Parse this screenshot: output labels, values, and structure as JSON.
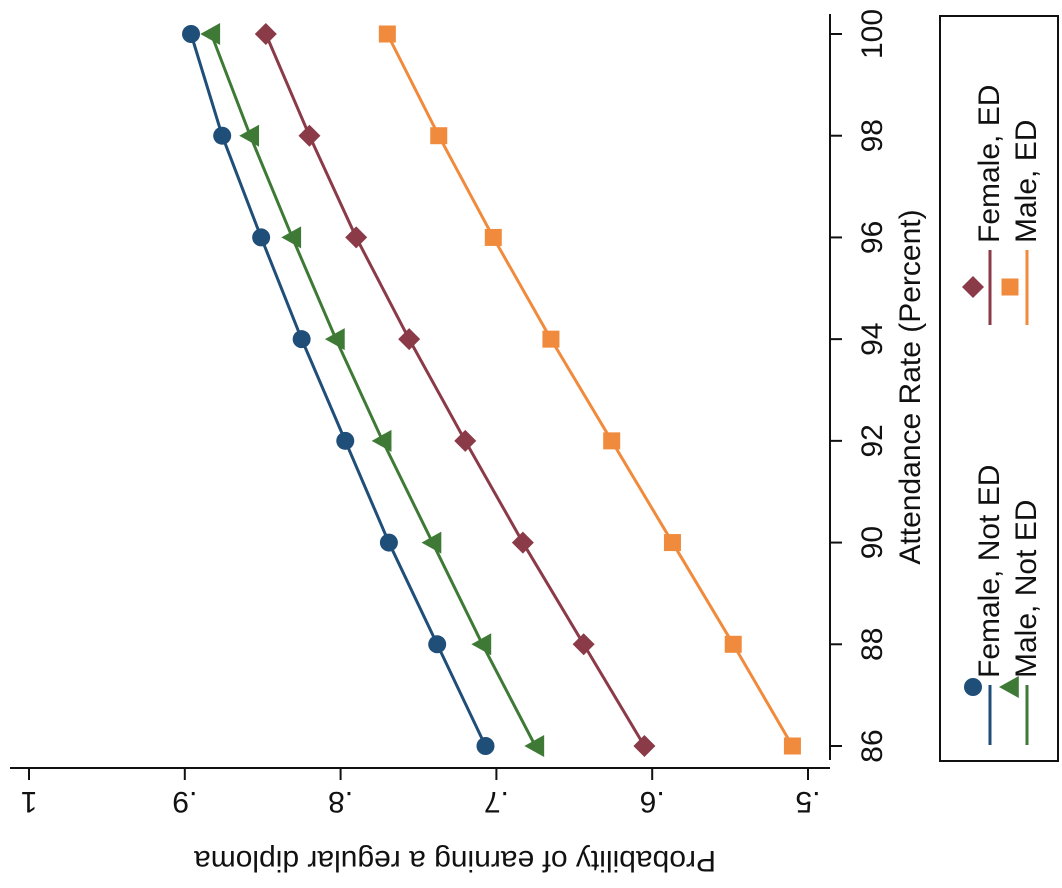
{
  "chart_data": {
    "type": "line",
    "orientation": "rotated-90",
    "xlabel": "Attendance Rate (Percent)",
    "ylabel": "Probability of earning a regular diploma",
    "x": [
      86,
      88,
      90,
      92,
      94,
      96,
      98,
      100
    ],
    "x_ticks": [
      "86",
      "88",
      "90",
      "92",
      "94",
      "96",
      "98",
      "100"
    ],
    "y_ticks": [
      ".5",
      ".6",
      ".7",
      ".8",
      ".9",
      "1"
    ],
    "y_tick_values": [
      0.5,
      0.6,
      0.7,
      0.8,
      0.9,
      1.0
    ],
    "xlim": [
      86,
      100
    ],
    "ylim": [
      0.5,
      1.0
    ],
    "grid": false,
    "legend_position": "right",
    "series": [
      {
        "name": "Female, Not ED",
        "color": "#1f4e79",
        "marker": "circle",
        "values": [
          0.707,
          0.738,
          0.769,
          0.797,
          0.825,
          0.851,
          0.876,
          0.896
        ]
      },
      {
        "name": "Female, ED",
        "color": "#8b3a48",
        "marker": "diamond",
        "values": [
          0.605,
          0.644,
          0.683,
          0.72,
          0.756,
          0.79,
          0.82,
          0.848
        ]
      },
      {
        "name": "Male, Not ED",
        "color": "#3e7a36",
        "marker": "triangle",
        "values": [
          0.675,
          0.709,
          0.741,
          0.773,
          0.803,
          0.831,
          0.858,
          0.883
        ]
      },
      {
        "name": "Male, ED",
        "color": "#f08a3c",
        "marker": "square",
        "values": [
          0.51,
          0.548,
          0.587,
          0.626,
          0.665,
          0.702,
          0.737,
          0.77
        ]
      }
    ]
  }
}
